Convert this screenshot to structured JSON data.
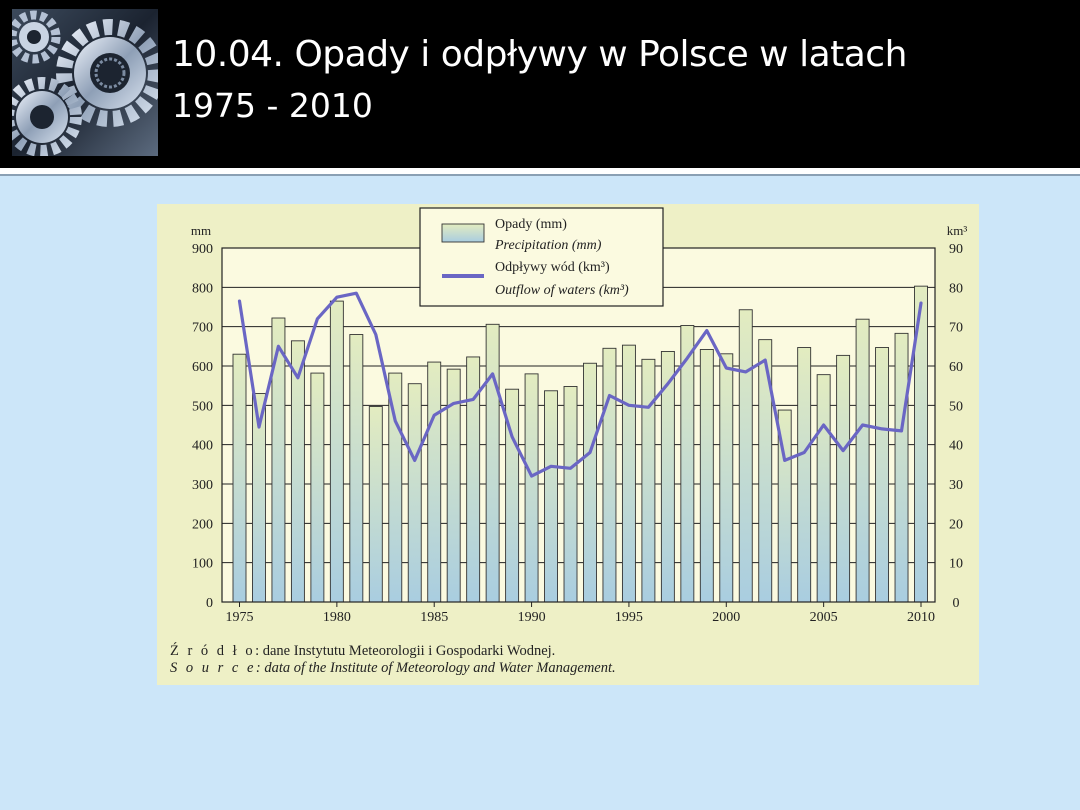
{
  "slide": {
    "title_line1": "10.04.  Opady i odpływy w Polsce w latach",
    "title_line2": "1975 - 2010",
    "logo": "gears-image"
  },
  "colors": {
    "header_bg": "#000000",
    "slide_bg": "#cce6f9",
    "figure_bg": "#eef0c6",
    "plot_bg": "#fbfae0",
    "bar_top": "#e3ecc0",
    "bar_bottom": "#a9cde0",
    "line": "#6a66c4"
  },
  "source": {
    "pl_key": "Ź r ó d ł o",
    "pl_text": ": dane Instytutu Meteorologii i Gospodarki Wodnej.",
    "en_key": "S o u r c e",
    "en_text": ": data of the Institute of Meteorology and Water Management."
  },
  "chart_data": {
    "type": "bar",
    "title": "",
    "ylabel_left": "mm",
    "ylabel_right": "km³",
    "ylim_left": [
      0,
      900
    ],
    "ylim_right": [
      0,
      90
    ],
    "yticks_left": [
      "0",
      "100",
      "200",
      "300",
      "400",
      "500",
      "600",
      "700",
      "800",
      "900"
    ],
    "yticks_right": [
      "0",
      "10",
      "20",
      "30",
      "40",
      "50",
      "60",
      "70",
      "80",
      "90"
    ],
    "xticks": [
      "1975",
      "1980",
      "1985",
      "1990",
      "1995",
      "2000",
      "2005",
      "2010"
    ],
    "grid": true,
    "legend_position": "top-center",
    "legend": [
      {
        "label": "Opady (mm)",
        "sublabel": "Precipitation (mm)",
        "symbol": "bar"
      },
      {
        "label": "Odpływy wód (km³)",
        "sublabel": "Outflow of waters (km³)",
        "symbol": "line"
      }
    ],
    "years": [
      1975,
      1976,
      1977,
      1978,
      1979,
      1980,
      1981,
      1982,
      1983,
      1984,
      1985,
      1986,
      1987,
      1988,
      1989,
      1990,
      1991,
      1992,
      1993,
      1994,
      1995,
      1996,
      1997,
      1998,
      1999,
      2000,
      2001,
      2002,
      2003,
      2004,
      2005,
      2006,
      2007,
      2008,
      2009,
      2010
    ],
    "series": [
      {
        "name": "Opady (mm)",
        "type": "bar",
        "axis": "left",
        "values": [
          630,
          530,
          722,
          664,
          582,
          765,
          680,
          497,
          582,
          555,
          610,
          592,
          623,
          706,
          541,
          580,
          537,
          548,
          607,
          645,
          653,
          617,
          637,
          703,
          642,
          631,
          743,
          667,
          488,
          647,
          578,
          627,
          719,
          647,
          683,
          803
        ]
      },
      {
        "name": "Odpływy wód (km³)",
        "type": "line",
        "axis": "right",
        "values": [
          76.5,
          44.5,
          65,
          57,
          72,
          77.5,
          78.5,
          68,
          46,
          36,
          47.5,
          50.5,
          51.5,
          58,
          42,
          32,
          34.5,
          34,
          38,
          52.5,
          50,
          49.5,
          55.5,
          62,
          69,
          59.5,
          58.5,
          61.5,
          36,
          38,
          45,
          38.5,
          45,
          44,
          43.5,
          76
        ]
      }
    ]
  }
}
